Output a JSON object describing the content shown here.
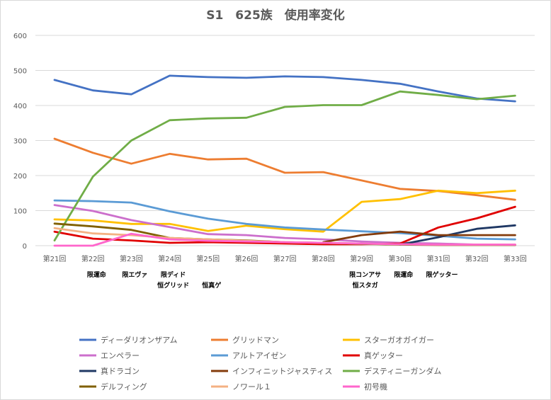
{
  "chart_data": {
    "type": "line",
    "title": "S1　625族　使用率変化",
    "xlabel": "",
    "ylabel": "",
    "ylim": [
      0,
      600
    ],
    "yticks": [
      0,
      100,
      200,
      300,
      400,
      500,
      600
    ],
    "grid": true,
    "legend_position": "bottom",
    "categories": [
      "第21回",
      "第22回",
      "第23回",
      "第24回",
      "第25回",
      "第26回",
      "第27回",
      "第28回",
      "第29回",
      "第30回",
      "第31回",
      "第32回",
      "第33回"
    ],
    "annotations": [
      {
        "category_index": 1,
        "lines": [
          "限運命"
        ]
      },
      {
        "category_index": 2,
        "lines": [
          "限エヴァ"
        ]
      },
      {
        "category_index": 3,
        "lines": [
          "限ディド",
          "恒グリッド"
        ]
      },
      {
        "category_index": 4,
        "lines": [
          "",
          "恒真ゲ"
        ]
      },
      {
        "category_index": 8,
        "lines": [
          "限コンアサ",
          "恒スタガ"
        ]
      },
      {
        "category_index": 9,
        "lines": [
          "限運命"
        ]
      },
      {
        "category_index": 10,
        "lines": [
          "限ゲッター"
        ]
      }
    ],
    "series": [
      {
        "name": "ディーダリオンザアム",
        "color": "#4472c4",
        "values": [
          473,
          443,
          432,
          485,
          481,
          479,
          483,
          481,
          473,
          462,
          440,
          420,
          412
        ]
      },
      {
        "name": "グリッドマン",
        "color": "#ed7d31",
        "values": [
          305,
          265,
          234,
          262,
          246,
          248,
          208,
          210,
          186,
          162,
          156,
          144,
          131
        ]
      },
      {
        "name": "スターガオガイガー",
        "color": "#ffc000",
        "values": [
          75,
          72,
          62,
          62,
          42,
          57,
          47,
          40,
          125,
          133,
          157,
          150,
          157
        ]
      },
      {
        "name": "エンペラー",
        "color": "#cc6fcc",
        "values": [
          116,
          99,
          73,
          53,
          33,
          30,
          22,
          18,
          12,
          8,
          6,
          3,
          2
        ]
      },
      {
        "name": "アルトアイゼン",
        "color": "#5b9bd5",
        "values": [
          129,
          127,
          123,
          98,
          77,
          62,
          52,
          46,
          41,
          36,
          28,
          20,
          18
        ]
      },
      {
        "name": "真ゲッター",
        "color": "#e00000",
        "values": [
          40,
          20,
          15,
          8,
          10,
          8,
          6,
          4,
          4,
          6,
          52,
          78,
          111
        ]
      },
      {
        "name": "真ドラゴン",
        "color": "#1f3864",
        "values": [
          null,
          null,
          null,
          null,
          null,
          null,
          null,
          null,
          null,
          3,
          24,
          48,
          58
        ]
      },
      {
        "name": "インフィニットジャスティス",
        "color": "#843c0c",
        "values": [
          null,
          null,
          null,
          null,
          null,
          null,
          null,
          10,
          30,
          40,
          30,
          30,
          30
        ]
      },
      {
        "name": "デスティニーガンダム",
        "color": "#70ad47",
        "values": [
          15,
          197,
          300,
          358,
          363,
          365,
          396,
          401,
          401,
          440,
          430,
          418,
          428
        ]
      },
      {
        "name": "デルフィング",
        "color": "#806000",
        "values": [
          63,
          55,
          45,
          22,
          18,
          15,
          10,
          8,
          5,
          3,
          2,
          2,
          2
        ]
      },
      {
        "name": "ノワール１",
        "color": "#f4b183",
        "values": [
          50,
          35,
          30,
          22,
          18,
          14,
          10,
          8,
          6,
          4,
          3,
          3,
          3
        ]
      },
      {
        "name": "初号機",
        "color": "#ff66cc",
        "values": [
          0,
          0,
          34,
          18,
          14,
          12,
          10,
          8,
          6,
          4,
          3,
          3,
          3
        ]
      }
    ]
  }
}
